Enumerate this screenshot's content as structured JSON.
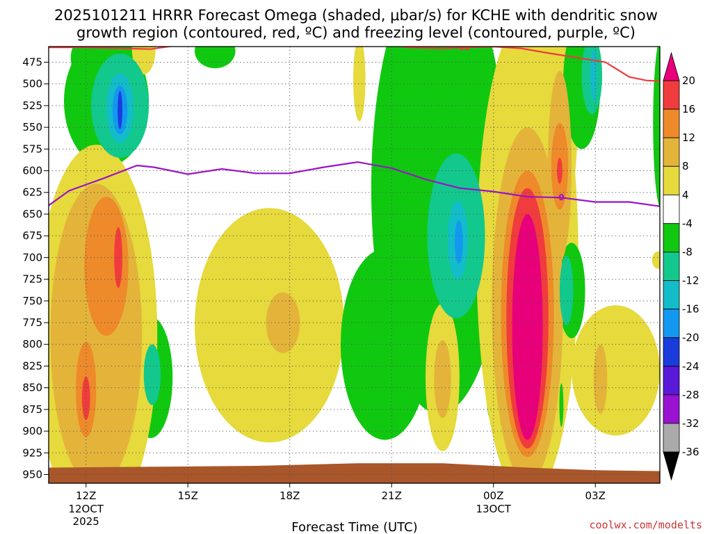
{
  "chart_data": {
    "type": "heatmap",
    "title_lines": [
      "2025101211 HRRR Forecast Omega (shaded, μbar/s) for KCHE with dendritic snow",
      "growth region (contoured, red, ºC) and freezing level (contoured, purple, ºC)"
    ],
    "xlabel": "Forecast Time (UTC)",
    "ylabel": "Pressure (hPa)",
    "credit": "coolwx.com/modelts",
    "credit_color": "#cc3333",
    "y_ticks": [
      475,
      500,
      525,
      550,
      575,
      600,
      625,
      650,
      675,
      700,
      725,
      750,
      775,
      800,
      825,
      850,
      875,
      900,
      925,
      950
    ],
    "ylim": [
      457,
      960
    ],
    "xlim": [
      10.9,
      28.9
    ],
    "x_ticks": [
      {
        "hour": 12,
        "label": "12Z",
        "sub": [
          "12OCT",
          "2025"
        ]
      },
      {
        "hour": 15,
        "label": "15Z",
        "sub": []
      },
      {
        "hour": 18,
        "label": "18Z",
        "sub": []
      },
      {
        "hour": 21,
        "label": "21Z",
        "sub": []
      },
      {
        "hour": 24,
        "label": "00Z",
        "sub": [
          "13OCT"
        ]
      },
      {
        "hour": 27,
        "label": "03Z",
        "sub": []
      }
    ],
    "colorbar": {
      "labels": [
        "20",
        "16",
        "12",
        "8",
        "4",
        "-4",
        "-8",
        "-12",
        "-16",
        "-20",
        "-24",
        "-28",
        "-32",
        "-36"
      ],
      "bins": [
        {
          "range": "20+",
          "color": "#e8007a"
        },
        {
          "range": "16 to 20",
          "color": "#f03c3c"
        },
        {
          "range": "12 to 16",
          "color": "#ee8a2a"
        },
        {
          "range": "8 to 12",
          "color": "#e4b43a"
        },
        {
          "range": "4 to 8",
          "color": "#e6da3c"
        },
        {
          "range": "-4 to 4",
          "color": "#ffffff"
        },
        {
          "range": "-8 to -4",
          "color": "#10c810"
        },
        {
          "range": "-12 to -8",
          "color": "#12c88c"
        },
        {
          "range": "-16 to -12",
          "color": "#12bcc8"
        },
        {
          "range": "-20 to -16",
          "color": "#1298f0"
        },
        {
          "range": "-24 to -20",
          "color": "#1a3cdc"
        },
        {
          "range": "-28 to -24",
          "color": "#5a18d8"
        },
        {
          "range": "-32 to -28",
          "color": "#9a12d2"
        },
        {
          "range": "-36 to -32",
          "color": "#aaaaaa"
        },
        {
          "range": "below -36",
          "color": "#000000"
        }
      ]
    },
    "contours": [
      {
        "name": "dgz-minus12",
        "color": "#ee3b3b",
        "label": "-12",
        "points": [
          [
            10.9,
            458
          ],
          [
            12.0,
            458
          ],
          [
            13.0,
            459
          ],
          [
            13.9,
            460
          ],
          [
            14.6,
            456
          ],
          [
            15.5,
            455
          ],
          [
            16.5,
            455
          ],
          [
            17.5,
            455
          ],
          [
            18.5,
            456
          ],
          [
            19.5,
            456
          ],
          [
            20.8,
            455
          ],
          [
            21.5,
            458
          ],
          [
            22.5,
            459
          ],
          [
            23.2,
            458
          ],
          [
            24.0,
            457
          ],
          [
            24.8,
            459
          ],
          [
            25.7,
            465
          ],
          [
            26.5,
            470
          ],
          [
            27.3,
            475
          ],
          [
            28.0,
            492
          ],
          [
            28.5,
            496
          ],
          [
            28.9,
            497
          ]
        ]
      },
      {
        "name": "freezing-level-0",
        "color": "#9a12c8",
        "label": "0",
        "points": [
          [
            10.9,
            640
          ],
          [
            11.5,
            623
          ],
          [
            12.5,
            609
          ],
          [
            13.5,
            594
          ],
          [
            14.0,
            596
          ],
          [
            15.0,
            604
          ],
          [
            16.0,
            598
          ],
          [
            17.0,
            603
          ],
          [
            18.0,
            603
          ],
          [
            19.0,
            596
          ],
          [
            20.0,
            590
          ],
          [
            21.0,
            597
          ],
          [
            22.0,
            610
          ],
          [
            23.0,
            620
          ],
          [
            24.0,
            624
          ],
          [
            25.0,
            630
          ],
          [
            26.0,
            631
          ],
          [
            27.0,
            636
          ],
          [
            28.0,
            636
          ],
          [
            28.9,
            641
          ]
        ]
      }
    ],
    "omega_regions": [
      {
        "name": "green-1200",
        "value": -6,
        "shape": "ellipse",
        "center": [
          12.6,
          520
        ],
        "radius": [
          1.25,
          75
        ]
      },
      {
        "name": "green-1200-upper",
        "value": -6,
        "shape": "ellipse",
        "center": [
          12.5,
          470
        ],
        "radius": [
          0.95,
          35
        ]
      },
      {
        "name": "teal-1200",
        "value": -10,
        "shape": "ellipse",
        "center": [
          13.0,
          525
        ],
        "radius": [
          0.85,
          60
        ]
      },
      {
        "name": "cyan-1200",
        "value": -14,
        "shape": "ellipse",
        "center": [
          13.0,
          528
        ],
        "radius": [
          0.4,
          40
        ]
      },
      {
        "name": "blue-1200",
        "value": -18,
        "shape": "ellipse",
        "center": [
          13.0,
          530
        ],
        "radius": [
          0.22,
          28
        ]
      },
      {
        "name": "darkblue-1200",
        "value": -22,
        "shape": "ellipse",
        "center": [
          13.0,
          530
        ],
        "radius": [
          0.07,
          22
        ]
      },
      {
        "name": "yellow-1200-top",
        "value": 6,
        "shape": "ellipse",
        "center": [
          13.7,
          459
        ],
        "radius": [
          0.35,
          30
        ]
      },
      {
        "name": "green-1515-top",
        "value": -6,
        "shape": "ellipse",
        "center": [
          15.8,
          462
        ],
        "radius": [
          0.6,
          20
        ]
      },
      {
        "name": "yellow-2010-top",
        "value": 6,
        "shape": "ellipse",
        "center": [
          20.05,
          495
        ],
        "radius": [
          0.18,
          48
        ]
      },
      {
        "name": "green-1410-low",
        "value": -6,
        "shape": "ellipse",
        "center": [
          13.9,
          838
        ],
        "radius": [
          0.65,
          70
        ]
      },
      {
        "name": "teal-1410-low",
        "value": -10,
        "shape": "ellipse",
        "center": [
          13.95,
          835
        ],
        "radius": [
          0.25,
          35
        ]
      },
      {
        "name": "yellow-1230-low",
        "value": 6,
        "shape": "ellipse",
        "center": [
          12.3,
          790
        ],
        "radius": [
          1.8,
          220
        ]
      },
      {
        "name": "gold-1230-low",
        "value": 10,
        "shape": "ellipse",
        "center": [
          12.3,
          790
        ],
        "radius": [
          1.35,
          175
        ]
      },
      {
        "name": "orange-1230-low",
        "value": 14,
        "shape": "ellipse",
        "center": [
          12.6,
          710
        ],
        "radius": [
          0.65,
          80
        ]
      },
      {
        "name": "orange-1200-lower",
        "value": 14,
        "shape": "ellipse",
        "center": [
          12.0,
          852
        ],
        "radius": [
          0.3,
          55
        ]
      },
      {
        "name": "red-1300",
        "value": 18,
        "shape": "ellipse",
        "center": [
          12.95,
          700
        ],
        "radius": [
          0.12,
          35
        ]
      },
      {
        "name": "red-1200",
        "value": 18,
        "shape": "ellipse",
        "center": [
          12.0,
          862
        ],
        "radius": [
          0.12,
          25
        ]
      },
      {
        "name": "yellow-1740-mid",
        "value": 6,
        "shape": "ellipse",
        "center": [
          17.4,
          778
        ],
        "radius": [
          2.2,
          135
        ]
      },
      {
        "name": "gold-1740-mid",
        "value": 10,
        "shape": "ellipse",
        "center": [
          17.8,
          775
        ],
        "radius": [
          0.5,
          35
        ]
      },
      {
        "name": "green-2140-mid",
        "value": -6,
        "shape": "ellipse",
        "center": [
          22.4,
          620
        ],
        "radius": [
          2.0,
          260
        ]
      },
      {
        "name": "green-2100-lower",
        "value": -6,
        "shape": "ellipse",
        "center": [
          20.8,
          800
        ],
        "radius": [
          1.3,
          110
        ]
      },
      {
        "name": "teal-2240",
        "value": -10,
        "shape": "ellipse",
        "center": [
          22.9,
          675
        ],
        "radius": [
          0.85,
          95
        ]
      },
      {
        "name": "cyan-2250",
        "value": -14,
        "shape": "ellipse",
        "center": [
          22.95,
          680
        ],
        "radius": [
          0.3,
          45
        ]
      },
      {
        "name": "blue-2300",
        "value": -18,
        "shape": "ellipse",
        "center": [
          22.98,
          682
        ],
        "radius": [
          0.12,
          25
        ]
      },
      {
        "name": "yellow-2250-low",
        "value": 6,
        "shape": "ellipse",
        "center": [
          22.5,
          838
        ],
        "radius": [
          0.5,
          85
        ]
      },
      {
        "name": "gold-2250-low",
        "value": 10,
        "shape": "ellipse",
        "center": [
          22.5,
          840
        ],
        "radius": [
          0.25,
          45
        ]
      },
      {
        "name": "green-2400-low",
        "value": -6,
        "shape": "ellipse",
        "center": [
          23.9,
          845
        ],
        "radius": [
          0.12,
          40
        ]
      },
      {
        "name": "yellow-0100",
        "value": 6,
        "shape": "ellipse",
        "center": [
          25.0,
          700
        ],
        "radius": [
          1.5,
          280
        ]
      },
      {
        "name": "yellow-0200-stem",
        "value": 6,
        "shape": "ellipse",
        "center": [
          26.0,
          520
        ],
        "radius": [
          0.5,
          140
        ]
      },
      {
        "name": "gold-0100",
        "value": 10,
        "shape": "ellipse",
        "center": [
          25.0,
          755
        ],
        "radius": [
          1.05,
          205
        ]
      },
      {
        "name": "gold-0200-stem",
        "value": 10,
        "shape": "ellipse",
        "center": [
          25.95,
          595
        ],
        "radius": [
          0.35,
          110
        ]
      },
      {
        "name": "orange-0100",
        "value": 14,
        "shape": "ellipse",
        "center": [
          25.0,
          765
        ],
        "radius": [
          0.78,
          165
        ]
      },
      {
        "name": "orange-0200",
        "value": 14,
        "shape": "ellipse",
        "center": [
          25.95,
          595
        ],
        "radius": [
          0.25,
          50
        ]
      },
      {
        "name": "red-0100",
        "value": 18,
        "shape": "ellipse",
        "center": [
          25.0,
          770
        ],
        "radius": [
          0.62,
          150
        ]
      },
      {
        "name": "red-0200",
        "value": 18,
        "shape": "ellipse",
        "center": [
          25.95,
          600
        ],
        "radius": [
          0.08,
          15
        ]
      },
      {
        "name": "magenta-0100",
        "value": 22,
        "shape": "ellipse",
        "center": [
          25.0,
          780
        ],
        "radius": [
          0.45,
          130
        ]
      },
      {
        "name": "green-0215",
        "value": -6,
        "shape": "ellipse",
        "center": [
          26.6,
          500
        ],
        "radius": [
          0.55,
          75
        ]
      },
      {
        "name": "teal-0215",
        "value": -10,
        "shape": "ellipse",
        "center": [
          26.9,
          490
        ],
        "radius": [
          0.3,
          45
        ]
      },
      {
        "name": "cyan-0215",
        "value": -14,
        "shape": "ellipse",
        "center": [
          26.95,
          490
        ],
        "radius": [
          0.1,
          30
        ]
      },
      {
        "name": "green-0230-low",
        "value": -6,
        "shape": "ellipse",
        "center": [
          26.3,
          738
        ],
        "radius": [
          0.4,
          55
        ]
      },
      {
        "name": "teal-0230-low",
        "value": -10,
        "shape": "ellipse",
        "center": [
          26.15,
          738
        ],
        "radius": [
          0.2,
          40
        ]
      },
      {
        "name": "green-0200-thin",
        "value": -6,
        "shape": "ellipse",
        "center": [
          26.0,
          870
        ],
        "radius": [
          0.06,
          25
        ]
      },
      {
        "name": "yellow-0330-low",
        "value": 6,
        "shape": "ellipse",
        "center": [
          27.6,
          830
        ],
        "radius": [
          1.3,
          75
        ]
      },
      {
        "name": "gold-0300-low",
        "value": 10,
        "shape": "ellipse",
        "center": [
          27.15,
          840
        ],
        "radius": [
          0.2,
          40
        ]
      },
      {
        "name": "yellow-0400-edge",
        "value": 6,
        "shape": "ellipse",
        "center": [
          28.85,
          703
        ],
        "radius": [
          0.18,
          10
        ]
      },
      {
        "name": "green-0400-edge",
        "value": -6,
        "shape": "ellipse",
        "center": [
          28.95,
          545
        ],
        "radius": [
          0.25,
          100
        ]
      },
      {
        "name": "yellow-0200-top",
        "value": 6,
        "shape": "ellipse",
        "center": [
          26.02,
          458
        ],
        "radius": [
          0.08,
          15
        ]
      }
    ],
    "terrain": {
      "color": "#a9562a",
      "points": [
        [
          10.9,
          942
        ],
        [
          14.0,
          941
        ],
        [
          17.0,
          940
        ],
        [
          20.0,
          937
        ],
        [
          22.5,
          937
        ],
        [
          25.0,
          942
        ],
        [
          27.0,
          945
        ],
        [
          28.9,
          946
        ]
      ]
    }
  }
}
